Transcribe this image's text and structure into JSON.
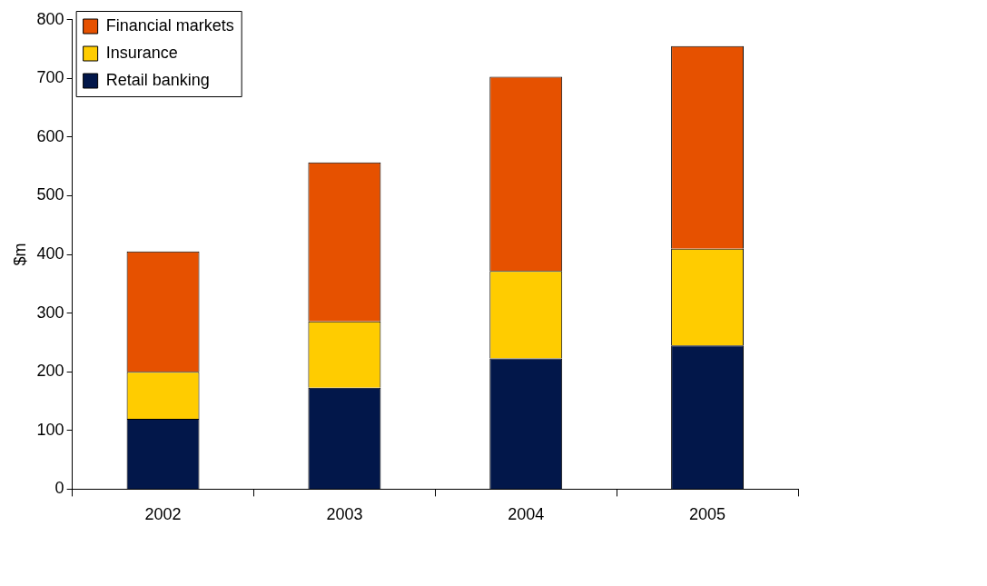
{
  "chart_data": {
    "type": "bar",
    "stacked": true,
    "ylabel": "$m",
    "categories": [
      "2002",
      "2003",
      "2004",
      "2005"
    ],
    "series": [
      {
        "name": "Retail banking",
        "color": "#02174a",
        "values": [
          120,
          173,
          223,
          245
        ]
      },
      {
        "name": "Insurance",
        "color": "#ffcc00",
        "values": [
          80,
          113,
          149,
          165
        ]
      },
      {
        "name": "Financial markets",
        "color": "#e65100",
        "values": [
          205,
          271,
          331,
          345
        ]
      }
    ],
    "ylim": [
      0,
      800
    ],
    "yticks": [
      0,
      100,
      200,
      300,
      400,
      500,
      600,
      700,
      800
    ],
    "grid": false,
    "legend": "top left"
  }
}
